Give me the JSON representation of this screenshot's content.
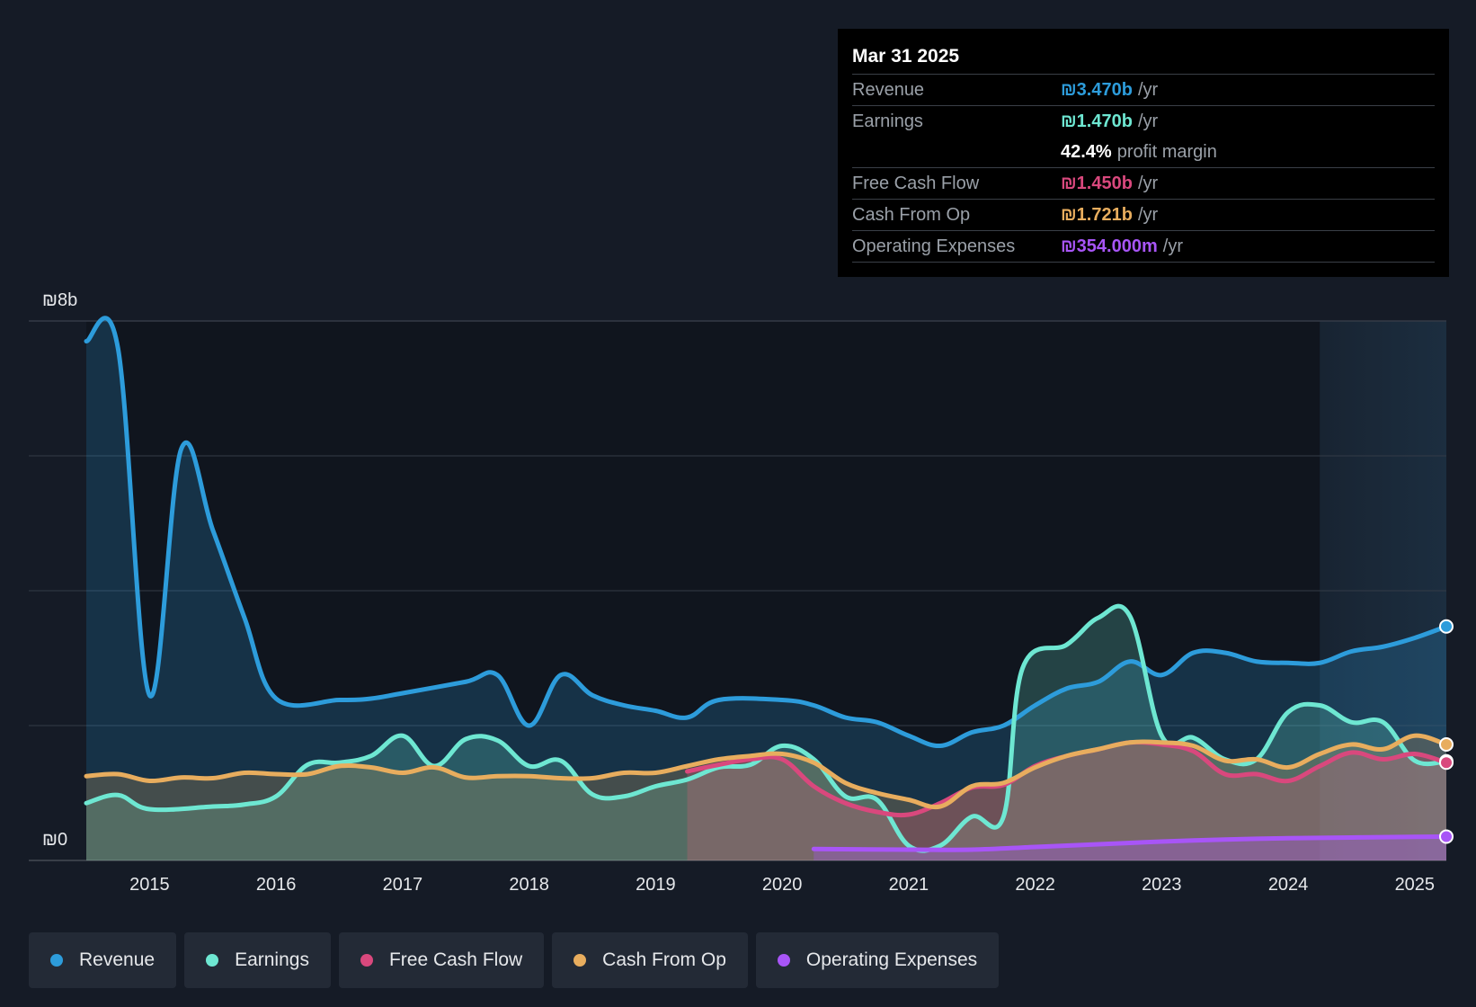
{
  "tooltip": {
    "date": "Mar 31 2025",
    "rows": [
      {
        "label": "Revenue",
        "value": "₪3.470b",
        "unit": "/yr",
        "color": "#2d9cdb"
      },
      {
        "label": "Earnings",
        "value": "₪1.470b",
        "unit": "/yr",
        "color": "#6ee7d2"
      },
      {
        "label": "",
        "value": "42.4%",
        "unit": "profit margin",
        "color": "#ffffff"
      },
      {
        "label": "Free Cash Flow",
        "value": "₪1.450b",
        "unit": "/yr",
        "color": "#d9487d"
      },
      {
        "label": "Cash From Op",
        "value": "₪1.721b",
        "unit": "/yr",
        "color": "#e8ad5e"
      },
      {
        "label": "Operating Expenses",
        "value": "₪354.000m",
        "unit": "/yr",
        "color": "#a855f7"
      }
    ]
  },
  "legend": [
    {
      "label": "Revenue",
      "color": "#2d9cdb"
    },
    {
      "label": "Earnings",
      "color": "#6ee7d2"
    },
    {
      "label": "Free Cash Flow",
      "color": "#d9487d"
    },
    {
      "label": "Cash From Op",
      "color": "#e8ad5e"
    },
    {
      "label": "Operating Expenses",
      "color": "#a855f7"
    }
  ],
  "chart_data": {
    "type": "area",
    "y_tick_labels": [
      "₪8b",
      "₪0"
    ],
    "ylim": [
      0,
      8
    ],
    "xlim": [
      2014.5,
      2025.25
    ],
    "x_ticks": [
      2015,
      2016,
      2017,
      2018,
      2019,
      2020,
      2021,
      2022,
      2023,
      2024,
      2025
    ],
    "x_tick_labels": [
      "2015",
      "2016",
      "2017",
      "2018",
      "2019",
      "2020",
      "2021",
      "2022",
      "2023",
      "2024",
      "2025"
    ],
    "grid": true,
    "forecast_shade_from": 2024.25,
    "series": [
      {
        "name": "Revenue",
        "color": "#2d9cdb",
        "points": [
          [
            2014.5,
            7.7
          ],
          [
            2014.75,
            7.6
          ],
          [
            2015.0,
            2.45
          ],
          [
            2015.25,
            6.1
          ],
          [
            2015.5,
            4.9
          ],
          [
            2015.75,
            3.6
          ],
          [
            2016.0,
            2.4
          ],
          [
            2016.5,
            2.38
          ],
          [
            2016.75,
            2.4
          ],
          [
            2017.0,
            2.48
          ],
          [
            2017.5,
            2.65
          ],
          [
            2017.75,
            2.75
          ],
          [
            2018.0,
            2.0
          ],
          [
            2018.25,
            2.75
          ],
          [
            2018.5,
            2.45
          ],
          [
            2018.75,
            2.3
          ],
          [
            2019.0,
            2.22
          ],
          [
            2019.25,
            2.12
          ],
          [
            2019.5,
            2.38
          ],
          [
            2020.0,
            2.38
          ],
          [
            2020.25,
            2.3
          ],
          [
            2020.5,
            2.12
          ],
          [
            2020.75,
            2.05
          ],
          [
            2021.0,
            1.85
          ],
          [
            2021.25,
            1.7
          ],
          [
            2021.5,
            1.9
          ],
          [
            2021.75,
            2.0
          ],
          [
            2022.0,
            2.3
          ],
          [
            2022.25,
            2.55
          ],
          [
            2022.5,
            2.65
          ],
          [
            2022.75,
            2.95
          ],
          [
            2023.0,
            2.75
          ],
          [
            2023.25,
            3.08
          ],
          [
            2023.5,
            3.08
          ],
          [
            2023.75,
            2.95
          ],
          [
            2024.0,
            2.93
          ],
          [
            2024.25,
            2.93
          ],
          [
            2024.5,
            3.1
          ],
          [
            2024.75,
            3.17
          ],
          [
            2025.0,
            3.3
          ],
          [
            2025.25,
            3.47
          ]
        ]
      },
      {
        "name": "Earnings",
        "color": "#6ee7d2",
        "points": [
          [
            2014.5,
            0.85
          ],
          [
            2014.75,
            0.97
          ],
          [
            2015.0,
            0.76
          ],
          [
            2015.5,
            0.8
          ],
          [
            2015.75,
            0.83
          ],
          [
            2016.0,
            0.95
          ],
          [
            2016.25,
            1.42
          ],
          [
            2016.5,
            1.45
          ],
          [
            2016.75,
            1.55
          ],
          [
            2017.0,
            1.85
          ],
          [
            2017.25,
            1.4
          ],
          [
            2017.5,
            1.8
          ],
          [
            2017.75,
            1.78
          ],
          [
            2018.0,
            1.4
          ],
          [
            2018.25,
            1.48
          ],
          [
            2018.5,
            0.98
          ],
          [
            2018.75,
            0.95
          ],
          [
            2019.0,
            1.1
          ],
          [
            2019.25,
            1.2
          ],
          [
            2019.5,
            1.38
          ],
          [
            2019.75,
            1.42
          ],
          [
            2020.0,
            1.7
          ],
          [
            2020.25,
            1.5
          ],
          [
            2020.5,
            0.95
          ],
          [
            2020.75,
            0.9
          ],
          [
            2021.0,
            0.22
          ],
          [
            2021.25,
            0.22
          ],
          [
            2021.5,
            0.65
          ],
          [
            2021.75,
            0.65
          ],
          [
            2021.9,
            2.85
          ],
          [
            2022.25,
            3.2
          ],
          [
            2022.5,
            3.6
          ],
          [
            2022.75,
            3.62
          ],
          [
            2023.0,
            1.85
          ],
          [
            2023.25,
            1.82
          ],
          [
            2023.5,
            1.5
          ],
          [
            2023.75,
            1.5
          ],
          [
            2024.0,
            2.2
          ],
          [
            2024.25,
            2.3
          ],
          [
            2024.5,
            2.05
          ],
          [
            2024.75,
            2.05
          ],
          [
            2025.0,
            1.48
          ],
          [
            2025.25,
            1.47
          ]
        ]
      },
      {
        "name": "Free Cash Flow",
        "color": "#d9487d",
        "points": [
          [
            2019.25,
            1.32
          ],
          [
            2019.5,
            1.42
          ],
          [
            2019.75,
            1.5
          ],
          [
            2020.0,
            1.5
          ],
          [
            2020.25,
            1.1
          ],
          [
            2020.5,
            0.85
          ],
          [
            2020.75,
            0.72
          ],
          [
            2021.0,
            0.68
          ],
          [
            2021.25,
            0.85
          ],
          [
            2021.5,
            1.08
          ],
          [
            2021.75,
            1.12
          ],
          [
            2022.0,
            1.4
          ],
          [
            2022.25,
            1.55
          ],
          [
            2022.5,
            1.65
          ],
          [
            2022.75,
            1.75
          ],
          [
            2023.0,
            1.72
          ],
          [
            2023.25,
            1.62
          ],
          [
            2023.5,
            1.28
          ],
          [
            2023.75,
            1.28
          ],
          [
            2024.0,
            1.18
          ],
          [
            2024.25,
            1.4
          ],
          [
            2024.5,
            1.6
          ],
          [
            2024.75,
            1.5
          ],
          [
            2025.0,
            1.58
          ],
          [
            2025.25,
            1.45
          ]
        ]
      },
      {
        "name": "Cash From Op",
        "color": "#e8ad5e",
        "points": [
          [
            2014.5,
            1.25
          ],
          [
            2014.75,
            1.28
          ],
          [
            2015.0,
            1.18
          ],
          [
            2015.25,
            1.23
          ],
          [
            2015.5,
            1.22
          ],
          [
            2015.75,
            1.3
          ],
          [
            2016.0,
            1.28
          ],
          [
            2016.25,
            1.28
          ],
          [
            2016.5,
            1.4
          ],
          [
            2016.75,
            1.38
          ],
          [
            2017.0,
            1.3
          ],
          [
            2017.25,
            1.38
          ],
          [
            2017.5,
            1.23
          ],
          [
            2017.75,
            1.25
          ],
          [
            2018.0,
            1.25
          ],
          [
            2018.25,
            1.22
          ],
          [
            2018.5,
            1.22
          ],
          [
            2018.75,
            1.3
          ],
          [
            2019.0,
            1.3
          ],
          [
            2019.25,
            1.4
          ],
          [
            2019.5,
            1.5
          ],
          [
            2019.75,
            1.55
          ],
          [
            2020.0,
            1.58
          ],
          [
            2020.25,
            1.45
          ],
          [
            2020.5,
            1.15
          ],
          [
            2020.75,
            1.0
          ],
          [
            2021.0,
            0.9
          ],
          [
            2021.25,
            0.8
          ],
          [
            2021.5,
            1.1
          ],
          [
            2021.75,
            1.15
          ],
          [
            2022.0,
            1.38
          ],
          [
            2022.25,
            1.55
          ],
          [
            2022.5,
            1.65
          ],
          [
            2022.75,
            1.75
          ],
          [
            2023.0,
            1.75
          ],
          [
            2023.25,
            1.7
          ],
          [
            2023.5,
            1.48
          ],
          [
            2023.75,
            1.5
          ],
          [
            2024.0,
            1.38
          ],
          [
            2024.25,
            1.58
          ],
          [
            2024.5,
            1.72
          ],
          [
            2024.75,
            1.65
          ],
          [
            2025.0,
            1.85
          ],
          [
            2025.25,
            1.72
          ]
        ]
      },
      {
        "name": "Operating Expenses",
        "color": "#a855f7",
        "points": [
          [
            2020.25,
            0.17
          ],
          [
            2021.0,
            0.16
          ],
          [
            2021.5,
            0.16
          ],
          [
            2022.0,
            0.2
          ],
          [
            2022.5,
            0.24
          ],
          [
            2023.0,
            0.28
          ],
          [
            2023.5,
            0.31
          ],
          [
            2024.0,
            0.33
          ],
          [
            2024.5,
            0.34
          ],
          [
            2025.0,
            0.35
          ],
          [
            2025.25,
            0.354
          ]
        ]
      }
    ]
  }
}
